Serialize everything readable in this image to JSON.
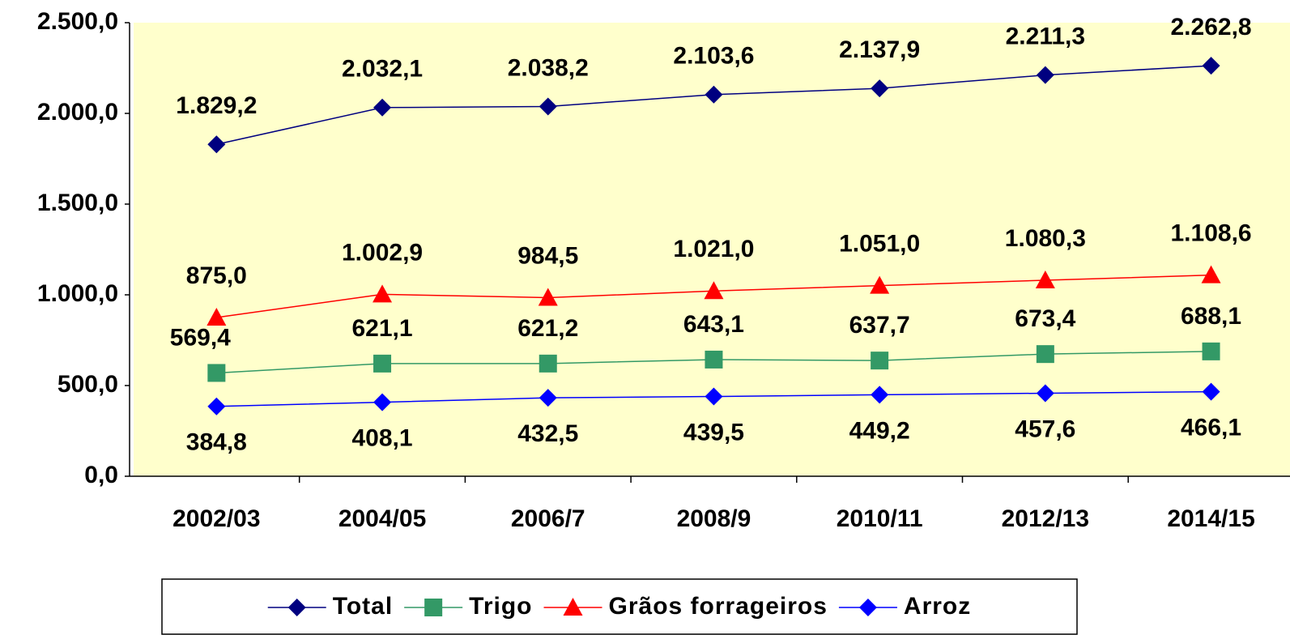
{
  "chart_data": {
    "type": "line",
    "categories": [
      "2002/03",
      "2004/05",
      "2006/7",
      "2008/9",
      "2010/11",
      "2012/13",
      "2014/15"
    ],
    "series": [
      {
        "name": "Total",
        "color": "#000080",
        "marker": "diamond",
        "values": [
          1829.2,
          2032.1,
          2038.2,
          2103.6,
          2137.9,
          2211.3,
          2262.8
        ],
        "value_labels": [
          "1.829,2",
          "2.032,1",
          "2.038,2",
          "2.103,6",
          "2.137,9",
          "2.211,3",
          "2.262,8"
        ]
      },
      {
        "name": "Trigo",
        "color": "#339966",
        "marker": "square",
        "values": [
          569.4,
          621.1,
          621.2,
          643.1,
          637.7,
          673.4,
          688.1
        ],
        "value_labels": [
          "569,4",
          "621,1",
          "621,2",
          "643,1",
          "637,7",
          "673,4",
          "688,1"
        ]
      },
      {
        "name": "Grãos forrageiros",
        "color": "#ff0000",
        "marker": "triangle",
        "values": [
          875.0,
          1002.9,
          984.5,
          1021.0,
          1051.0,
          1080.3,
          1108.6
        ],
        "value_labels": [
          "875,0",
          "1.002,9",
          "984,5",
          "1.021,0",
          "1.051,0",
          "1.080,3",
          "1.108,6"
        ]
      },
      {
        "name": "Arroz",
        "color": "#0000ff",
        "marker": "diamond",
        "values": [
          384.8,
          408.1,
          432.5,
          439.5,
          449.2,
          457.6,
          466.1
        ],
        "value_labels": [
          "384,8",
          "408,1",
          "432,5",
          "439,5",
          "449,2",
          "457,6",
          "466,1"
        ]
      }
    ],
    "ylim": [
      0,
      2500
    ],
    "yticks": [
      {
        "value": 0,
        "label": "0,0"
      },
      {
        "value": 500,
        "label": "500,0"
      },
      {
        "value": 1000,
        "label": "1.000,0"
      },
      {
        "value": 1500,
        "label": "1.500,0"
      },
      {
        "value": 2000,
        "label": "2.000,0"
      },
      {
        "value": 2500,
        "label": "2.500,0"
      }
    ],
    "grid": false,
    "legend": "bottom"
  }
}
